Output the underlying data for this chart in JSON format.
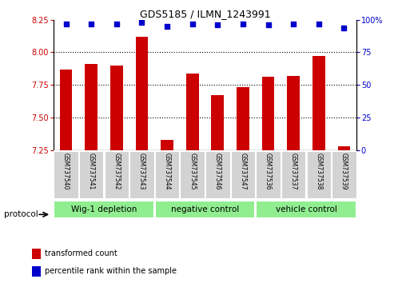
{
  "title": "GDS5185 / ILMN_1243991",
  "samples": [
    "GSM737540",
    "GSM737541",
    "GSM737542",
    "GSM737543",
    "GSM737544",
    "GSM737545",
    "GSM737546",
    "GSM737547",
    "GSM737536",
    "GSM737537",
    "GSM737538",
    "GSM737539"
  ],
  "bar_values": [
    7.87,
    7.91,
    7.9,
    8.12,
    7.33,
    7.84,
    7.67,
    7.73,
    7.81,
    7.82,
    7.97,
    7.28
  ],
  "percentile_values": [
    97,
    97,
    97,
    98,
    95,
    97,
    96,
    97,
    96,
    97,
    97,
    94
  ],
  "bar_color": "#cc0000",
  "dot_color": "#0000cc",
  "ylim_left": [
    7.25,
    8.25
  ],
  "ylim_right": [
    0,
    100
  ],
  "yticks_left": [
    7.25,
    7.5,
    7.75,
    8.0,
    8.25
  ],
  "yticks_right": [
    0,
    25,
    50,
    75,
    100
  ],
  "groups": [
    {
      "label": "Wig-1 depletion",
      "start": 0,
      "end": 4
    },
    {
      "label": "negative control",
      "start": 4,
      "end": 8
    },
    {
      "label": "vehicle control",
      "start": 8,
      "end": 12
    }
  ],
  "protocol_label": "protocol",
  "legend_bar_label": "transformed count",
  "legend_dot_label": "percentile rank within the sample",
  "bar_color_legend": "#cc0000",
  "dot_color_legend": "#0000cc",
  "bar_bottom": 7.25,
  "bar_width": 0.5,
  "group_color": "#90ee90"
}
